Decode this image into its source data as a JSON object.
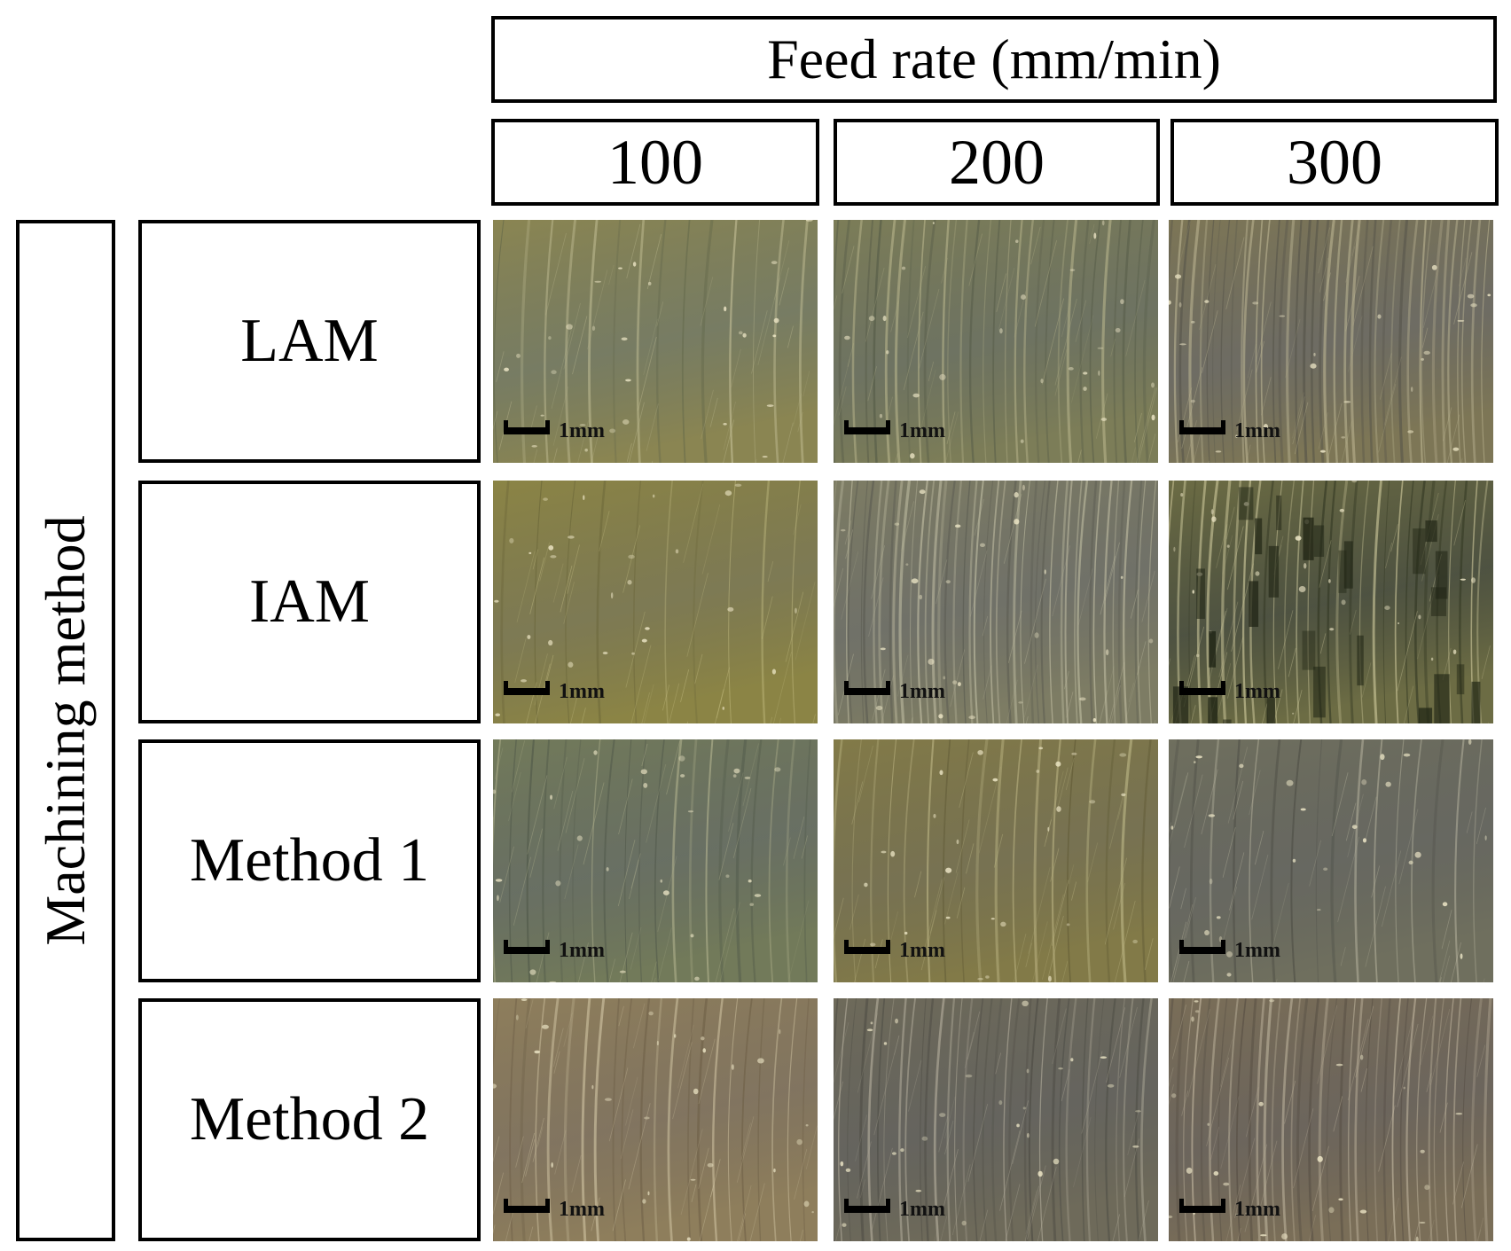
{
  "header": {
    "title": "Feed rate (mm/min)"
  },
  "columns": [
    "100",
    "200",
    "300"
  ],
  "axis": {
    "label": "Machining method"
  },
  "rows": [
    {
      "label": "LAM"
    },
    {
      "label": "IAM"
    },
    {
      "label": "Method 1"
    },
    {
      "label": "Method 2"
    }
  ],
  "scale_label": "1mm",
  "surfaces": [
    [
      {
        "base": "#8a8552",
        "dark": "#5f6548",
        "light": "#c8c49a",
        "grooves": 14
      },
      {
        "base": "#7c7d58",
        "dark": "#545a46",
        "light": "#bdb98f",
        "grooves": 30
      },
      {
        "base": "#7d7656",
        "dark": "#545248",
        "light": "#c2bb98",
        "grooves": 40
      }
    ],
    [
      {
        "base": "#8b8445",
        "dark": "#666236",
        "light": "#d0c98e",
        "grooves": 10
      },
      {
        "base": "#7d7c64",
        "dark": "#57584e",
        "light": "#c7c4a8",
        "grooves": 44
      },
      {
        "base": "#6c6c44",
        "dark": "#2f3420",
        "light": "#d6d0a2",
        "grooves": 30
      }
    ],
    [
      {
        "base": "#727a5a",
        "dark": "#4e5648",
        "light": "#b9b994",
        "grooves": 20
      },
      {
        "base": "#827a48",
        "dark": "#5f5934",
        "light": "#c5be8c",
        "grooves": 18
      },
      {
        "base": "#6f6f5e",
        "dark": "#4c4d45",
        "light": "#c4c0a9",
        "grooves": 16
      }
    ],
    [
      {
        "base": "#8e7e5c",
        "dark": "#6b5c44",
        "light": "#d4c8a6",
        "grooves": 22
      },
      {
        "base": "#6e6a5a",
        "dark": "#4a4942",
        "light": "#bab4a2",
        "grooves": 34
      },
      {
        "base": "#7a6e58",
        "dark": "#524a40",
        "light": "#c9bea6",
        "grooves": 36
      }
    ]
  ]
}
